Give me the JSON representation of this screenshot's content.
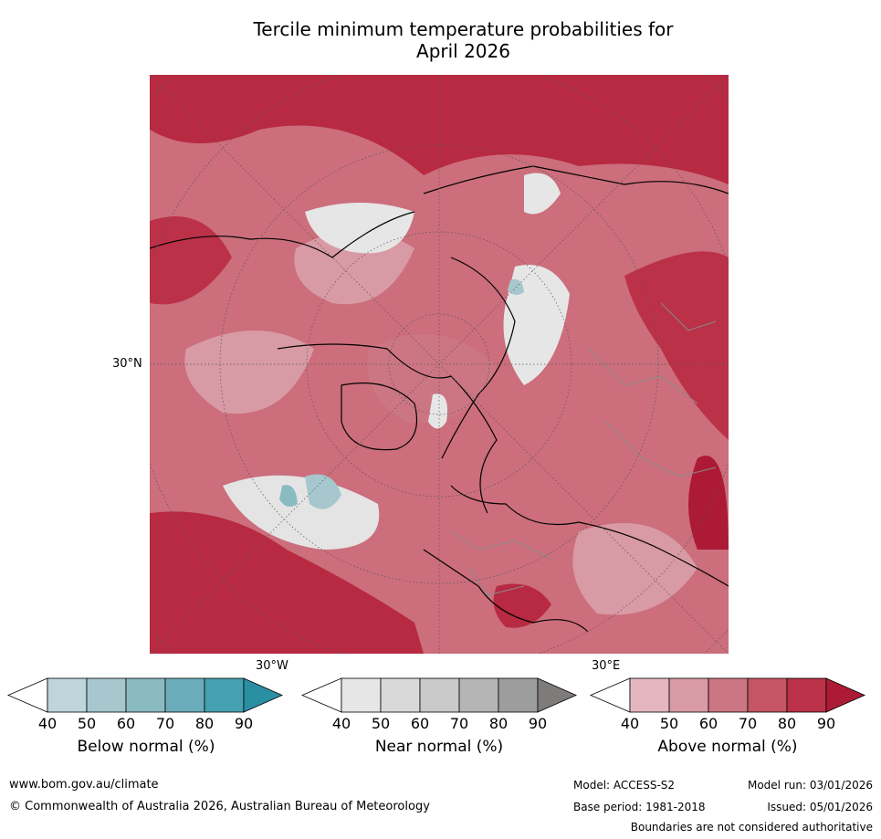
{
  "title": {
    "line1": "Tercile minimum temperature probabilities for",
    "line2": "April 2026"
  },
  "map": {
    "lat_labels": [
      "30°N"
    ],
    "lon_labels": [
      "30°W",
      "30°E"
    ]
  },
  "legends": [
    {
      "title": "Below normal (%)",
      "ticks": [
        "40",
        "50",
        "60",
        "70",
        "80",
        "90"
      ],
      "colors": [
        "#ffffff",
        "#bed5db",
        "#a5c7cd",
        "#8abbc3",
        "#6badbb",
        "#45a0b1",
        "#2a8fa3"
      ]
    },
    {
      "title": "Near normal (%)",
      "ticks": [
        "40",
        "50",
        "60",
        "70",
        "80",
        "90"
      ],
      "colors": [
        "#ffffff",
        "#e6e6e6",
        "#d9d9d9",
        "#c9c9c9",
        "#b5b5b5",
        "#9d9d9d",
        "#7f7b7b"
      ]
    },
    {
      "title": "Above normal (%)",
      "ticks": [
        "40",
        "50",
        "60",
        "70",
        "80",
        "90"
      ],
      "colors": [
        "#ffffff",
        "#e4b7bf",
        "#d89aa5",
        "#cc7683",
        "#c55563",
        "#bb3148",
        "#ad1a35"
      ]
    }
  ],
  "footer": {
    "website": "www.bom.gov.au/climate",
    "copyright": "© Commonwealth of Australia 2026, Australian Bureau of Meteorology",
    "model": "Model: ACCESS-S2",
    "model_run": "Model run: 03/01/2026",
    "base_period": "Base period: 1981-2018",
    "issued": "Issued: 05/01/2026",
    "disclaimer": "Boundaries are not considered authoritative"
  }
}
